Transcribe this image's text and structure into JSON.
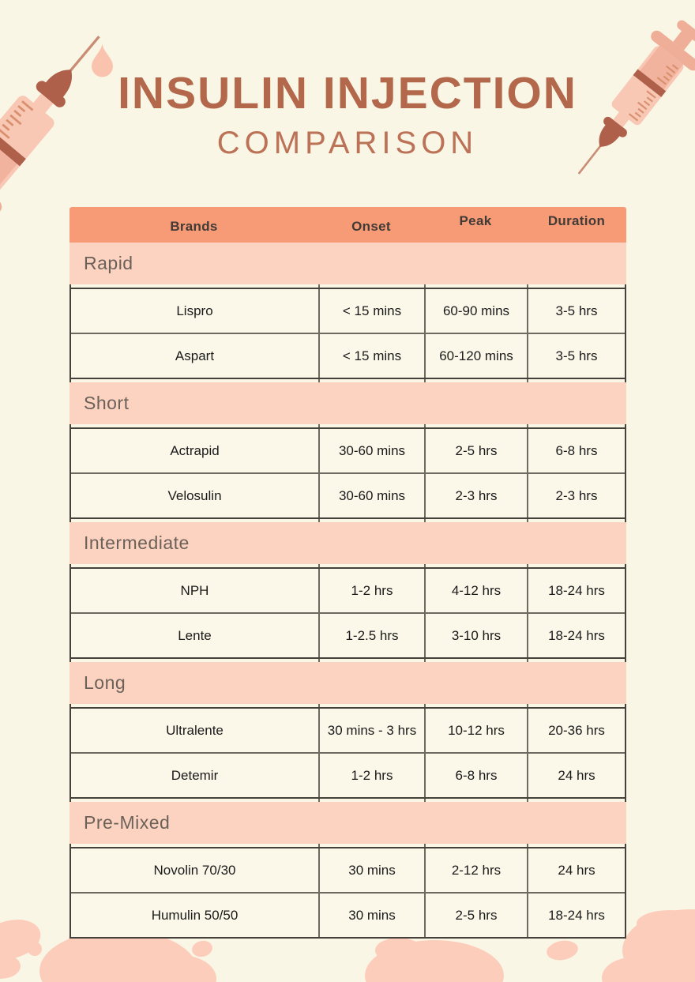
{
  "title": {
    "line1": "INSULIN INJECTION",
    "line2": "COMPARISON"
  },
  "chart_data": {
    "type": "table",
    "title": "Insulin Injection Comparison",
    "columns": [
      "Brands",
      "Onset",
      "Peak",
      "Duration"
    ],
    "groups": [
      {
        "category": "Rapid",
        "rows": [
          [
            "Lispro",
            "< 15 mins",
            "60-90 mins",
            "3-5 hrs"
          ],
          [
            "Aspart",
            "< 15 mins",
            "60-120 mins",
            "3-5 hrs"
          ]
        ]
      },
      {
        "category": "Short",
        "rows": [
          [
            "Actrapid",
            "30-60 mins",
            "2-5 hrs",
            "6-8 hrs"
          ],
          [
            "Velosulin",
            "30-60 mins",
            "2-3 hrs",
            "2-3 hrs"
          ]
        ]
      },
      {
        "category": "Intermediate",
        "rows": [
          [
            "NPH",
            "1-2 hrs",
            "4-12 hrs",
            "18-24 hrs"
          ],
          [
            "Lente",
            "1-2.5 hrs",
            "3-10 hrs",
            "18-24 hrs"
          ]
        ]
      },
      {
        "category": "Long",
        "rows": [
          [
            "Ultralente",
            "30 mins - 3 hrs",
            "10-12 hrs",
            "20-36 hrs"
          ],
          [
            "Detemir",
            "1-2 hrs",
            "6-8 hrs",
            "24 hrs"
          ]
        ]
      },
      {
        "category": "Pre-Mixed",
        "rows": [
          [
            "Novolin 70/30",
            "30 mins",
            "2-12 hrs",
            "24 hrs"
          ],
          [
            "Humulin 50/50",
            "30 mins",
            "2-5 hrs",
            "18-24 hrs"
          ]
        ]
      }
    ]
  },
  "icons": {
    "top_left": "syringe-icon",
    "top_right": "syringe-icon",
    "droplet": "droplet-icon",
    "bottom": "paint-blobs-decoration"
  },
  "colors": {
    "background": "#FAF6E6",
    "header_fill": "#F79A76",
    "band_fill": "#FCD3C1",
    "title_text": "#B3684C",
    "header_text": "#413B36",
    "category_text": "#6C6159",
    "cell_text": "#1A1A1A",
    "border_outer": "#45413A",
    "border_inner": "#6E6A61",
    "illustration_pink": "#F8C8B5",
    "illustration_dark_pink": "#EFAE98",
    "illustration_brown": "#AE604A",
    "blob_pink": "#FCCDBB"
  }
}
